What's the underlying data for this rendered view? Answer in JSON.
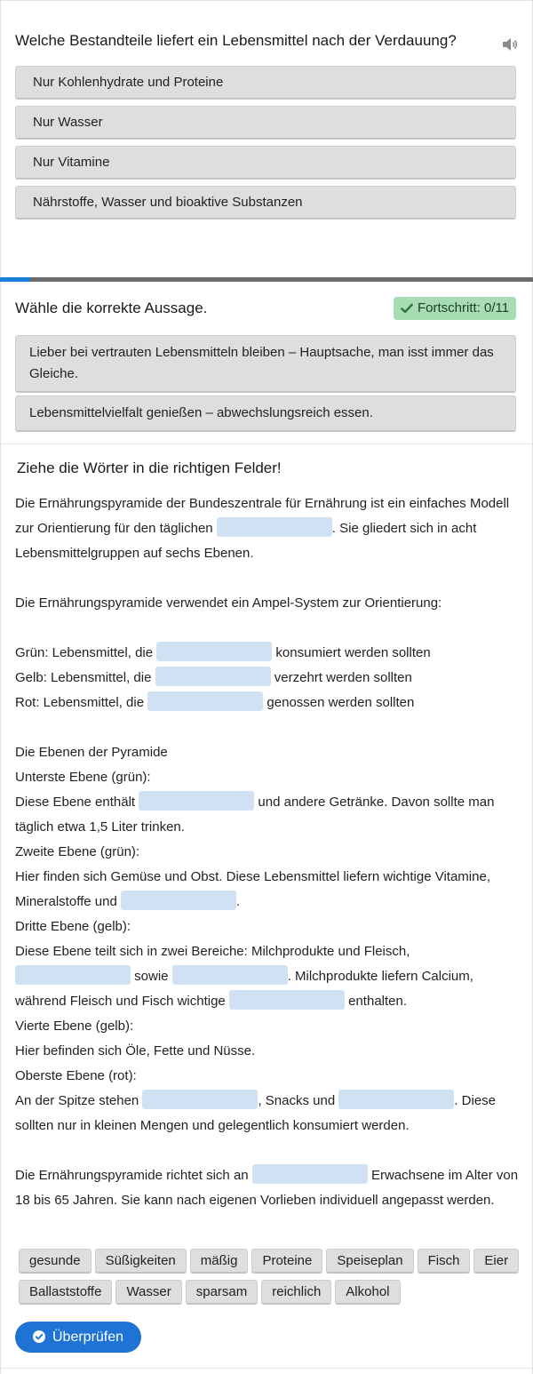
{
  "question1": {
    "title": "Welche Bestandteile liefert ein Lebensmittel nach der Verdauung?",
    "options": [
      "Nur Kohlenhydrate und Proteine",
      "Nur Wasser",
      "Nur Vitamine",
      "Nährstoffe, Wasser und bioaktive Substanzen"
    ]
  },
  "progress_bar": {
    "fraction": 0.057,
    "fill_color": "#1a7dd8",
    "track_color": "#6b6b6b"
  },
  "question2": {
    "title": "Wähle die korrekte Aussage.",
    "badge": "Fortschritt: 0/11",
    "options": [
      "Lieber bei vertrauten Lebensmitteln bleiben – Hauptsache, man isst immer das Gleiche.",
      "Lebensmittelvielfalt genießen – abwechslungsreich essen."
    ]
  },
  "question3": {
    "title": "Ziehe die Wörter in die richtigen Felder!",
    "t01": "Die Ernährungspyramide der Bundeszentrale für Ernährung ist ein einfaches Modell zur Orientierung für den täglichen ",
    "t02": ". Sie gliedert sich in acht Lebensmittelgruppen auf sechs Ebenen.",
    "t03": "Die Ernährungspyramide verwendet ein Ampel-System zur Orientierung:",
    "t04": "Grün: Lebensmittel, die ",
    "t05": " konsumiert werden sollten",
    "t06": "Gelb: Lebensmittel, die ",
    "t07": " verzehrt werden sollten",
    "t08": "Rot: Lebensmittel, die ",
    "t09": " genossen werden sollten",
    "t10": "Die Ebenen der Pyramide",
    "t11": "Unterste Ebene (grün):",
    "t12": "Diese Ebene enthält ",
    "t13": " und andere Getränke. Davon sollte man täglich etwa 1,5 Liter trinken.",
    "t14": "Zweite Ebene (grün):",
    "t15": "Hier finden sich Gemüse und Obst. Diese Lebensmittel liefern wichtige Vitamine, Mineralstoffe und ",
    "t16": ".",
    "t17": "Dritte Ebene (gelb):",
    "t18": "Diese Ebene teilt sich in zwei Bereiche: Milchprodukte und Fleisch, ",
    "t19": " sowie ",
    "t20": ". Milchprodukte liefern Calcium, während Fleisch und Fisch wichtige ",
    "t21": " enthalten.",
    "t22": "Vierte Ebene (gelb):",
    "t23": "Hier befinden sich Öle, Fette und Nüsse.",
    "t24": "Oberste Ebene (rot):",
    "t25": "An der Spitze stehen ",
    "t26": ", Snacks und ",
    "t27": ". Diese sollten nur in kleinen Mengen und gelegentlich konsumiert werden.",
    "t28": "Die Ernährungspyramide richtet sich an ",
    "t29": " Erwachsene im Alter von 18 bis 65 Jahren. Sie kann nach eigenen Vorlieben individuell angepasst werden.",
    "words": [
      "gesunde",
      "Süßigkeiten",
      "mäßig",
      "Proteine",
      "Speiseplan",
      "Fisch",
      "Eier",
      "Ballaststoffe",
      "Wasser",
      "sparsam",
      "reichlich",
      "Alkohol"
    ],
    "check_button": "Überprüfen"
  },
  "colors": {
    "accent": "#1e73d4",
    "option_bg": "#dedede",
    "blank_bg": "#cfe1f3",
    "badge_bg": "#a8dcb3"
  },
  "icons": [
    "speaker-icon",
    "checkmark-icon",
    "check-circle-icon"
  ]
}
